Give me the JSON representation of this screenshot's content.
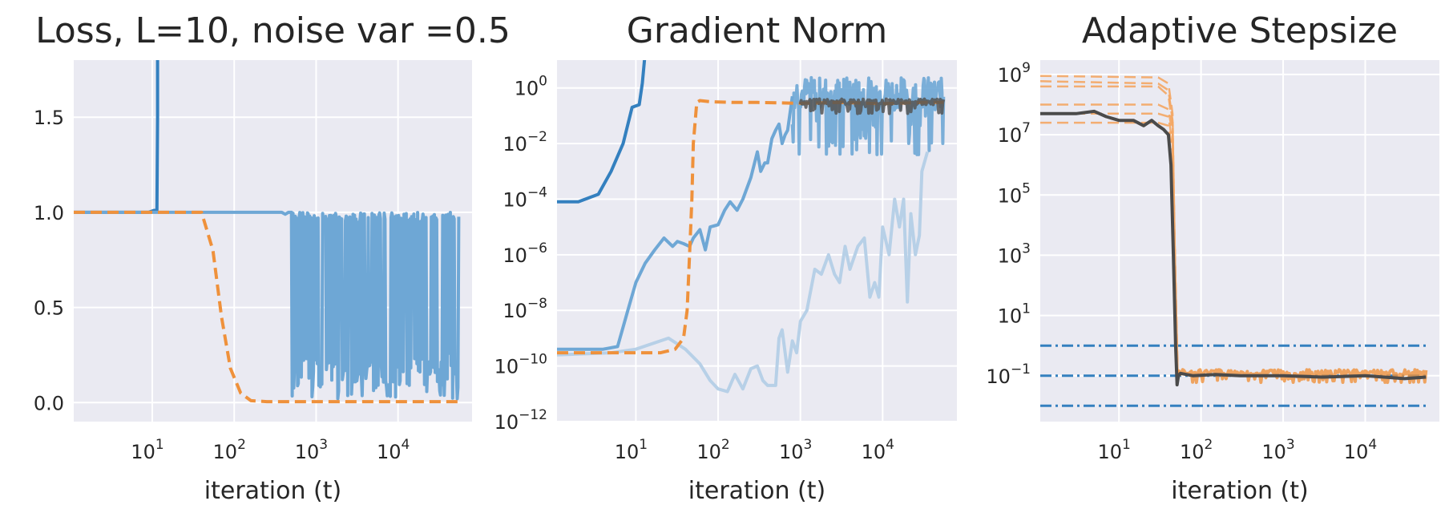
{
  "chart_data": [
    {
      "type": "line",
      "title": "Loss, L=10, noise var =0.5",
      "xlabel": "iteration (t)",
      "ylabel": "",
      "xscale": "log",
      "yscale": "linear",
      "xlim": [
        1.1,
        80000
      ],
      "ylim": [
        -0.1,
        1.8
      ],
      "xticks": [
        {
          "v": 10,
          "base": "10",
          "exp": "1"
        },
        {
          "v": 100,
          "base": "10",
          "exp": "2"
        },
        {
          "v": 1000,
          "base": "10",
          "exp": "3"
        },
        {
          "v": 10000,
          "base": "10",
          "exp": "4"
        }
      ],
      "yticks": [
        {
          "v": 0.0,
          "label": "0.0"
        },
        {
          "v": 0.5,
          "label": "0.5"
        },
        {
          "v": 1.0,
          "label": "1.0"
        },
        {
          "v": 1.5,
          "label": "1.5"
        }
      ],
      "grid": true,
      "legend": "none",
      "series": [
        {
          "color": "#3480bf",
          "dash": "solid",
          "width": 4,
          "opacity": 1,
          "kind": "line",
          "x": [
            1.1,
            9,
            10.5,
            11.4,
            11.6,
            11.6
          ],
          "y": [
            1.0,
            1.0,
            1.01,
            1.01,
            1.5,
            1.8
          ]
        },
        {
          "color": "#6ea7d5",
          "dash": "solid",
          "width": 4,
          "opacity": 1,
          "kind": "noisy",
          "x": [
            1.1,
            300,
            380,
            420,
            460,
            500
          ],
          "y": [
            1.0,
            1.0,
            1.0,
            0.99,
            1.0,
            1.0
          ],
          "noise": {
            "start": 500,
            "end": 55000,
            "lo": 0.02,
            "hi": 1.0,
            "n": 220
          }
        },
        {
          "color": "#ef913b",
          "dash": "dashed",
          "width": 4,
          "opacity": 1,
          "kind": "line",
          "x": [
            1.1,
            40,
            55,
            70,
            90,
            120,
            160,
            250,
            55000
          ],
          "y": [
            1.0,
            1.0,
            0.8,
            0.45,
            0.18,
            0.05,
            0.01,
            0.005,
            0.005
          ]
        }
      ]
    },
    {
      "type": "line",
      "title": "Gradient Norm",
      "xlabel": "iteration (t)",
      "ylabel": "",
      "xscale": "log",
      "yscale": "log",
      "xlim": [
        1.1,
        80000
      ],
      "ylim": [
        1e-12,
        10
      ],
      "xticks": [
        {
          "v": 10,
          "base": "10",
          "exp": "1"
        },
        {
          "v": 100,
          "base": "10",
          "exp": "2"
        },
        {
          "v": 1000,
          "base": "10",
          "exp": "3"
        },
        {
          "v": 10000,
          "base": "10",
          "exp": "4"
        }
      ],
      "yticks": [
        {
          "v": 1,
          "base": "10",
          "exp": "0"
        },
        {
          "v": 0.01,
          "base": "10",
          "exp": "−2"
        },
        {
          "v": 0.0001,
          "base": "10",
          "exp": "−4"
        },
        {
          "v": 1e-06,
          "base": "10",
          "exp": "−6"
        },
        {
          "v": 1e-08,
          "base": "10",
          "exp": "−8"
        },
        {
          "v": 1e-10,
          "base": "10",
          "exp": "−10"
        },
        {
          "v": 1e-12,
          "base": "10",
          "exp": "−12"
        }
      ],
      "grid": true,
      "legend": "none",
      "series": [
        {
          "color": "#3480bf",
          "dash": "solid",
          "width": 4,
          "opacity": 1,
          "kind": "line",
          "x": [
            1.1,
            2,
            3.5,
            5,
            7,
            9,
            11,
            12,
            13
          ],
          "y": [
            8e-05,
            8e-05,
            0.00015,
            0.001,
            0.01,
            0.2,
            0.25,
            1.5,
            20
          ]
        },
        {
          "color": "#b7d0e7",
          "dash": "solid",
          "width": 4,
          "opacity": 1,
          "kind": "line",
          "x": [
            1.1,
            5,
            10,
            25,
            40,
            60,
            80,
            100,
            130,
            160,
            200,
            250,
            300,
            350,
            400,
            500,
            550,
            600,
            700,
            800,
            900,
            1000,
            1200,
            1500,
            1800,
            2200,
            2600,
            3000,
            3500,
            4000,
            5000,
            6000,
            7000,
            8000,
            9000,
            10000,
            12000,
            14000,
            16000,
            18000,
            20000,
            22000,
            25000,
            28000,
            30000,
            35000
          ],
          "y": [
            2.5e-10,
            3e-10,
            4e-10,
            1e-09,
            4e-10,
            1.2e-10,
            3e-11,
            1.5e-11,
            1.2e-11,
            5e-11,
            1.5e-11,
            8e-11,
            1e-10,
            3e-11,
            2e-11,
            2e-11,
            1e-09,
            2e-09,
            6e-11,
            8e-10,
            3e-10,
            4e-09,
            1e-08,
            3e-07,
            2e-07,
            1e-06,
            2e-07,
            1e-07,
            2e-06,
            3e-07,
            2e-06,
            4e-06,
            3e-08,
            1e-07,
            3e-08,
            1e-05,
            1e-06,
            0.0001,
            1e-05,
            0.0001,
            2e-08,
            3e-05,
            1e-06,
            5e-06,
            0.001,
            0.005
          ]
        },
        {
          "color": "#6ea7d5",
          "dash": "solid",
          "width": 4,
          "opacity": 1,
          "kind": "line",
          "x": [
            1.1,
            4,
            6,
            8,
            10,
            13,
            17,
            22,
            28,
            32,
            38,
            45,
            50,
            60,
            70,
            80,
            100,
            120,
            140,
            170,
            200,
            250,
            300,
            330,
            370,
            400,
            450,
            500,
            550,
            600,
            650,
            700,
            800
          ],
          "y": [
            4e-10,
            4e-10,
            5e-10,
            1e-08,
            1e-07,
            5e-07,
            1.5e-06,
            4e-06,
            2e-06,
            3e-06,
            2.5e-06,
            2e-06,
            4e-06,
            8e-06,
            1.5e-06,
            1e-05,
            1.2e-05,
            4e-05,
            8e-05,
            4e-05,
            0.0001,
            0.0006,
            0.005,
            0.001,
            0.002,
            0.002,
            0.015,
            0.03,
            0.05,
            0.01,
            0.02,
            0.03,
            0.5
          ]
        },
        {
          "color": "#6ea7d5",
          "dash": "solid",
          "width": 4,
          "opacity": 0.9,
          "kind": "noisylog",
          "x": [],
          "y": [],
          "noise": {
            "start": 800,
            "end": 55000,
            "lo": 0.004,
            "hi": 2.5,
            "n": 200
          }
        },
        {
          "color": "#ef913b",
          "dash": "dashed",
          "width": 4,
          "opacity": 1,
          "kind": "line",
          "x": [
            1.1,
            20,
            30,
            38,
            42,
            45,
            48,
            50,
            55,
            60,
            80,
            150,
            300,
            1000,
            3000,
            10000,
            30000,
            55000
          ],
          "y": [
            3e-10,
            3e-10,
            4e-10,
            1e-09,
            1e-08,
            1e-06,
            0.0001,
            0.01,
            0.3,
            0.35,
            0.32,
            0.3,
            0.3,
            0.28,
            0.3,
            0.27,
            0.3,
            0.3
          ]
        },
        {
          "color": "#555555",
          "dash": "solid",
          "width": 4,
          "opacity": 0.85,
          "kind": "noisylog",
          "x": [],
          "y": [],
          "noise": {
            "start": 1000,
            "end": 55000,
            "lo": 0.12,
            "hi": 0.4,
            "n": 180
          }
        }
      ]
    },
    {
      "type": "line",
      "title": "Adaptive Stepsize",
      "xlabel": "iteration (t)",
      "ylabel": "",
      "xscale": "log",
      "yscale": "log",
      "xlim": [
        1.1,
        80000
      ],
      "ylim": [
        0.003,
        3000000000.0
      ],
      "xticks": [
        {
          "v": 10,
          "base": "10",
          "exp": "1"
        },
        {
          "v": 100,
          "base": "10",
          "exp": "2"
        },
        {
          "v": 1000,
          "base": "10",
          "exp": "3"
        },
        {
          "v": 10000,
          "base": "10",
          "exp": "4"
        }
      ],
      "yticks": [
        {
          "v": 1000000000.0,
          "base": "10",
          "exp": "9"
        },
        {
          "v": 10000000.0,
          "base": "10",
          "exp": "7"
        },
        {
          "v": 100000.0,
          "base": "10",
          "exp": "5"
        },
        {
          "v": 1000.0,
          "base": "10",
          "exp": "3"
        },
        {
          "v": 10,
          "base": "10",
          "exp": "1"
        },
        {
          "v": 0.1,
          "base": "10",
          "exp": "−1"
        }
      ],
      "grid": true,
      "legend": "none",
      "series": [
        {
          "color": "#3480bf",
          "dash": "dashdot",
          "width": 3,
          "opacity": 1,
          "kind": "line",
          "x": [
            1.1,
            55000
          ],
          "y": [
            1.0,
            1.0
          ]
        },
        {
          "color": "#3480bf",
          "dash": "dashdot",
          "width": 3,
          "opacity": 1,
          "kind": "line",
          "x": [
            1.1,
            55000
          ],
          "y": [
            0.1,
            0.1
          ]
        },
        {
          "color": "#3480bf",
          "dash": "dashdot",
          "width": 3,
          "opacity": 1,
          "kind": "line",
          "x": [
            1.1,
            55000
          ],
          "y": [
            0.01,
            0.01
          ]
        },
        {
          "color": "#f4a663",
          "dash": "dashed",
          "width": 2.5,
          "opacity": 0.9,
          "kind": "line",
          "x": [
            1.1,
            30,
            40,
            45,
            48,
            52
          ],
          "y": [
            900000000.0,
            800000000.0,
            500000000.0,
            50000000.0,
            1000.0,
            0.1
          ]
        },
        {
          "color": "#f4a663",
          "dash": "dashed",
          "width": 2.5,
          "opacity": 0.9,
          "kind": "line",
          "x": [
            1.1,
            30,
            40,
            45,
            48,
            52
          ],
          "y": [
            600000000.0,
            500000000.0,
            300000000.0,
            30000000.0,
            1000.0,
            0.1
          ]
        },
        {
          "color": "#f4a663",
          "dash": "dashed",
          "width": 2.5,
          "opacity": 0.9,
          "kind": "line",
          "x": [
            1.1,
            30,
            40,
            45,
            48,
            52
          ],
          "y": [
            400000000.0,
            400000000.0,
            200000000.0,
            20000000.0,
            1000.0,
            0.1
          ]
        },
        {
          "color": "#f4a663",
          "dash": "dashed",
          "width": 2.5,
          "opacity": 0.9,
          "kind": "line",
          "x": [
            1.1,
            30,
            40,
            45,
            48,
            52
          ],
          "y": [
            100000000.0,
            100000000.0,
            70000000.0,
            10000000.0,
            1000.0,
            0.1
          ]
        },
        {
          "color": "#f4a663",
          "dash": "dashed",
          "width": 2.5,
          "opacity": 0.9,
          "kind": "line",
          "x": [
            1.1,
            30,
            40,
            45,
            48,
            52
          ],
          "y": [
            50000000.0,
            50000000.0,
            40000000.0,
            5000000.0,
            1000.0,
            0.1
          ]
        },
        {
          "color": "#f4a663",
          "dash": "dashed",
          "width": 2.5,
          "opacity": 0.9,
          "kind": "line",
          "x": [
            1.1,
            30,
            40,
            45,
            48,
            52
          ],
          "y": [
            25000000.0,
            25000000.0,
            20000000.0,
            3000000.0,
            1000.0,
            0.1
          ]
        },
        {
          "color": "#ef913b",
          "dash": "solid",
          "width": 4,
          "opacity": 0.8,
          "kind": "noisylog",
          "x": [],
          "y": [],
          "noise": {
            "start": 52,
            "end": 55000,
            "lo": 0.06,
            "hi": 0.16,
            "n": 200
          }
        },
        {
          "color": "#4a4a4a",
          "dash": "solid",
          "width": 4,
          "opacity": 1,
          "kind": "line",
          "x": [
            1.1,
            3,
            5,
            7,
            10,
            15,
            20,
            25,
            30,
            35,
            40,
            43,
            46,
            49,
            51,
            53,
            56,
            80,
            150,
            300,
            1000,
            3000,
            10000,
            30000,
            55000
          ],
          "y": [
            50000000.0,
            50000000.0,
            60000000.0,
            40000000.0,
            30000000.0,
            30000000.0,
            20000000.0,
            30000000.0,
            20000000.0,
            15000000.0,
            10000000.0,
            1000000.0,
            1000.0,
            1,
            0.05,
            0.1,
            0.12,
            0.1,
            0.11,
            0.1,
            0.1,
            0.09,
            0.1,
            0.08,
            0.09
          ]
        }
      ]
    }
  ]
}
